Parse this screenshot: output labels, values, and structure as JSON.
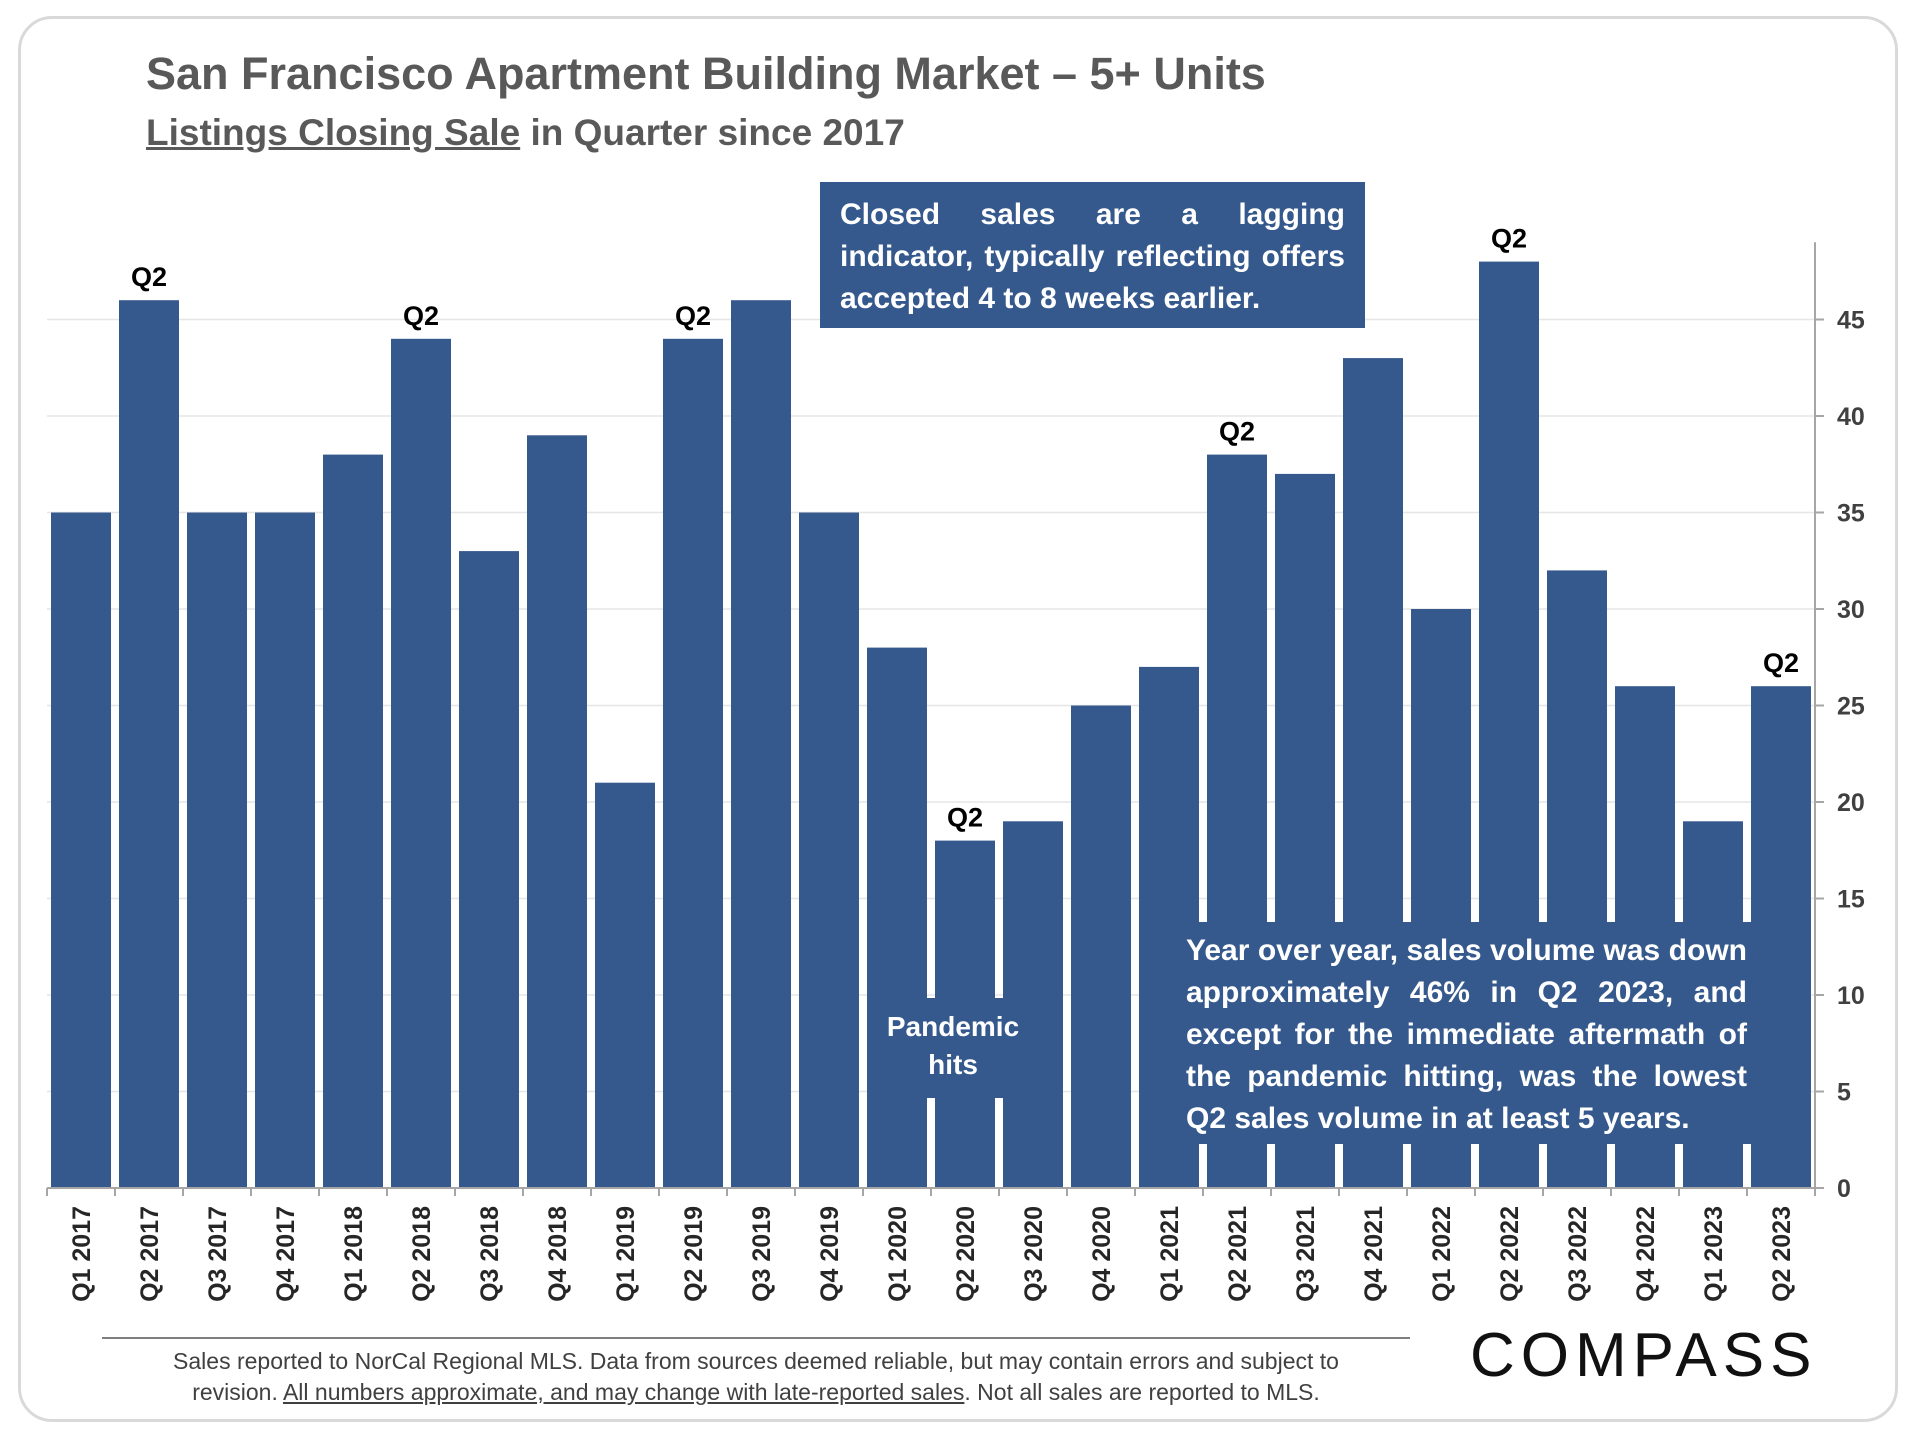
{
  "header": {
    "title": "San Francisco Apartment Building Market – 5+ Units",
    "subtitle_underlined": "Listings Closing Sale",
    "subtitle_rest": " in Quarter since 2017"
  },
  "callouts": {
    "top": "Closed sales are a lagging indicator, typically reflecting offers accepted 4 to 8 weeks earlier.",
    "bottom": "Year over year, sales volume was down approximately 46% in Q2 2023, and except for the immediate aftermath of the pandemic hitting, was the lowest Q2 sales volume in at least 5 years.",
    "pandemic": "Pandemic hits"
  },
  "footer": {
    "line1": "Sales reported to NorCal Regional MLS. Data from sources deemed reliable, but may contain errors and subject to",
    "line2_pre": "revision. ",
    "line2_underlined": "All numbers approximate, and may change with late-reported sales",
    "line2_post": ". Not all sales are reported to MLS."
  },
  "brand": {
    "logo_text": "COMPASS"
  },
  "colors": {
    "bar": "#35598d",
    "axis_label": "#404040",
    "grid": "#e6e6e6"
  },
  "chart_data": {
    "type": "bar",
    "title": "San Francisco Apartment Building Market – 5+ Units",
    "subtitle": "Listings Closing Sale in Quarter since 2017",
    "categories": [
      "Q1 2017",
      "Q2 2017",
      "Q3 2017",
      "Q4 2017",
      "Q1 2018",
      "Q2 2018",
      "Q3 2018",
      "Q4 2018",
      "Q1 2019",
      "Q2 2019",
      "Q3 2019",
      "Q4 2019",
      "Q1 2020",
      "Q2 2020",
      "Q3 2020",
      "Q4 2020",
      "Q1 2021",
      "Q2 2021",
      "Q3 2021",
      "Q4 2021",
      "Q1 2022",
      "Q2 2022",
      "Q3 2022",
      "Q4 2022",
      "Q1 2023",
      "Q2 2023"
    ],
    "values": [
      35,
      46,
      35,
      35,
      38,
      44,
      33,
      39,
      21,
      44,
      46,
      35,
      28,
      18,
      19,
      25,
      27,
      38,
      37,
      43,
      30,
      48,
      32,
      26,
      19,
      26
    ],
    "bar_labels": [
      {
        "category": "Q2 2017",
        "text": "Q2"
      },
      {
        "category": "Q2 2018",
        "text": "Q2"
      },
      {
        "category": "Q2 2019",
        "text": "Q2"
      },
      {
        "category": "Q2 2020",
        "text": "Q2"
      },
      {
        "category": "Q2 2021",
        "text": "Q2"
      },
      {
        "category": "Q2 2022",
        "text": "Q2"
      },
      {
        "category": "Q2 2023",
        "text": "Q2"
      }
    ],
    "y_ticks": [
      0,
      5,
      10,
      15,
      20,
      25,
      30,
      35,
      40,
      45
    ],
    "ylim": [
      0,
      49
    ],
    "y_axis_side": "right",
    "grid": true,
    "legend": "none"
  }
}
